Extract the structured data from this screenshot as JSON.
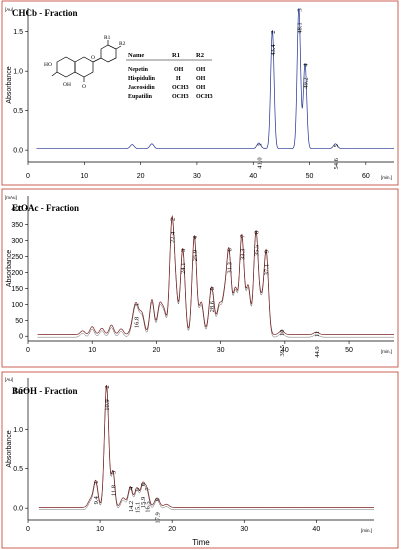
{
  "chart_data": [
    {
      "type": "line",
      "title": "CHCb - Fraction",
      "unit_label": "[Au]",
      "xunit_label": "[min.]",
      "ylabel": "Absorbance",
      "xlabel": "",
      "xlim": [
        0,
        65
      ],
      "ylim": [
        -0.15,
        1.8
      ],
      "x_ticks": [
        0,
        10,
        20,
        30,
        40,
        50,
        60
      ],
      "y_ticks": [
        0.0,
        0.5,
        1.0,
        1.5
      ],
      "y_tick_labels": [
        "0.0",
        "0.5",
        "1.0",
        "1.5"
      ],
      "baseline": 0.02,
      "peaks": [
        {
          "id": "1",
          "rt": 41.0,
          "rt_label": "41.0",
          "height": 0.07,
          "width": 0.35
        },
        {
          "id": "2",
          "rt": 43.4,
          "rt_label": "43.4",
          "height": 1.5,
          "width": 0.3
        },
        {
          "id": "3",
          "rt": 48.1,
          "rt_label": "48.1",
          "height": 1.78,
          "width": 0.3
        },
        {
          "id": "4",
          "rt": 49.2,
          "rt_label": "49.2",
          "height": 1.08,
          "width": 0.3
        },
        {
          "id": "5",
          "rt": 54.6,
          "rt_label": "54.6",
          "height": 0.06,
          "width": 0.35
        }
      ],
      "minor_peaks": [
        [
          18.5,
          0.05
        ],
        [
          22.0,
          0.06
        ]
      ],
      "structure_table": {
        "headers": [
          "Name",
          "R1",
          "R2"
        ],
        "rows": [
          [
            "Nepetin",
            "OH",
            "OH"
          ],
          [
            "Hispidulin",
            "H",
            "OH"
          ],
          [
            "Jaceosidin",
            "OCH3",
            "OH"
          ],
          [
            "Eupatilin",
            "OCH3",
            "OCH3"
          ]
        ],
        "atom_labels": [
          "HO",
          "O",
          "OH",
          "O",
          "R1",
          "R2"
        ]
      }
    },
    {
      "type": "line",
      "title": "EtOAc - Fraction",
      "unit_label": "[mAu]",
      "xunit_label": "[min.]",
      "ylabel": "Absorbance",
      "xlabel": "",
      "xlim": [
        0,
        57
      ],
      "ylim": [
        -15,
        440
      ],
      "x_ticks": [
        0,
        10,
        20,
        30,
        40,
        50
      ],
      "y_ticks": [
        0,
        50,
        100,
        150,
        200,
        250,
        300,
        350,
        400
      ],
      "y_tick_labels": [
        "0",
        "50",
        "100",
        "150",
        "200",
        "250",
        "300",
        "350",
        "400"
      ],
      "baseline": 5,
      "peaks": [
        {
          "id": "1",
          "rt": 16.8,
          "rt_label": "16.8",
          "height": 100,
          "width": 0.5
        },
        {
          "id": "2",
          "rt": 22.4,
          "rt_label": "22.4",
          "height": 340,
          "width": 0.35
        },
        {
          "id": "3",
          "rt": 24.1,
          "rt_label": "24.1",
          "height": 270,
          "width": 0.35
        },
        {
          "id": "4",
          "rt": 25.9,
          "rt_label": "25.9",
          "height": 310,
          "width": 0.35
        },
        {
          "id": "5",
          "rt": 28.6,
          "rt_label": "28.6",
          "height": 150,
          "width": 0.4
        },
        {
          "id": "6",
          "rt": 31.3,
          "rt_label": "31.3",
          "height": 255,
          "width": 0.35
        },
        {
          "id": "7",
          "rt": 33.3,
          "rt_label": "33.3",
          "height": 310,
          "width": 0.35
        },
        {
          "id": "8",
          "rt": 35.5,
          "rt_label": "35.5",
          "height": 320,
          "width": 0.35
        },
        {
          "id": "9",
          "rt": 37.1,
          "rt_label": "37.1",
          "height": 260,
          "width": 0.35
        },
        {
          "id": "10",
          "rt": 39.5,
          "rt_label": "39.5",
          "height": 12,
          "width": 0.4
        },
        {
          "id": "11",
          "rt": 44.9,
          "rt_label": "44.9",
          "height": 8,
          "width": 0.4
        }
      ],
      "minor_peaks": [
        [
          8.5,
          12
        ],
        [
          10.0,
          25
        ],
        [
          11.5,
          20
        ],
        [
          13.0,
          30
        ],
        [
          14.5,
          18
        ],
        [
          17.8,
          55
        ],
        [
          19.3,
          110
        ],
        [
          20.5,
          90
        ],
        [
          21.2,
          70
        ],
        [
          23.0,
          120
        ],
        [
          27.0,
          100
        ],
        [
          29.8,
          90
        ],
        [
          30.6,
          110
        ],
        [
          32.3,
          140
        ],
        [
          34.3,
          150
        ],
        [
          36.3,
          90
        ]
      ],
      "offset_trace_shift": 8
    },
    {
      "type": "line",
      "title": "BuOH - Fraction",
      "unit_label": "[Au]",
      "xunit_label": "[min.]",
      "ylabel": "Absorbance",
      "xlabel": "Time",
      "xlim": [
        0,
        48
      ],
      "ylim": [
        -0.15,
        1.65
      ],
      "x_ticks": [
        0,
        10,
        20,
        30,
        40
      ],
      "y_ticks": [
        0.0,
        0.5,
        1.0,
        1.5
      ],
      "y_tick_labels": [
        "0.0",
        "0.5",
        "1.0",
        "1.5"
      ],
      "baseline": 0.01,
      "peaks": [
        {
          "id": "1",
          "rt": 9.4,
          "rt_label": "9.4",
          "height": 0.33,
          "width": 0.3
        },
        {
          "id": "2",
          "rt": 10.9,
          "rt_label": "10.9",
          "height": 1.55,
          "width": 0.3
        },
        {
          "id": "3",
          "rt": 11.8,
          "rt_label": "11.8",
          "height": 0.45,
          "width": 0.25
        },
        {
          "id": "4",
          "rt": 14.2,
          "rt_label": "14.2",
          "height": 0.26,
          "width": 0.3
        },
        {
          "id": "5",
          "rt": 15.1,
          "rt_label": "15.1",
          "height": 0.24,
          "width": 0.3
        },
        {
          "id": "6",
          "rt": 15.9,
          "rt_label": "15.9",
          "height": 0.28,
          "width": 0.3
        },
        {
          "id": "7",
          "rt": 16.5,
          "rt_label": "16.5",
          "height": 0.22,
          "width": 0.3
        },
        {
          "id": "8",
          "rt": 17.9,
          "rt_label": "17.9",
          "height": 0.12,
          "width": 0.35
        }
      ],
      "minor_peaks": [
        [
          8.7,
          0.1
        ],
        [
          13.2,
          0.12
        ],
        [
          19.2,
          0.04
        ]
      ],
      "offset_trace_shift": 0.03
    }
  ],
  "colors": {
    "trace_primary": "#7a1f1f",
    "trace_secondary": "#555555",
    "trace_blue": "#1f2f8f",
    "frame": "#c0392b",
    "text": "#000000"
  }
}
